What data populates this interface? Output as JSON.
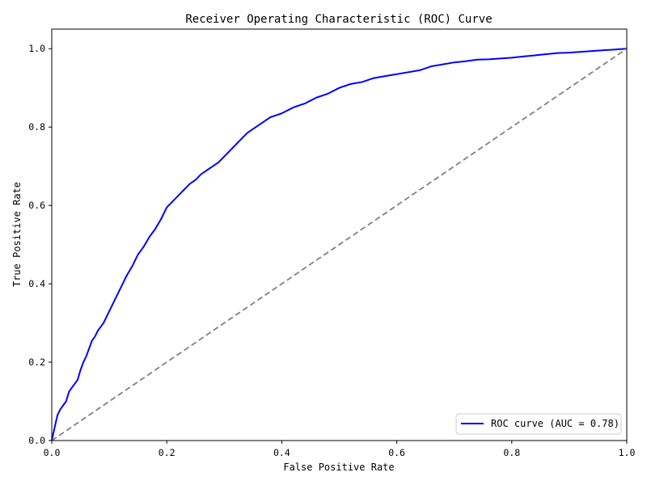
{
  "chart_data": {
    "type": "line",
    "title": "Receiver Operating Characteristic (ROC) Curve",
    "xlabel": "False Positive Rate",
    "ylabel": "True Positive Rate",
    "xlim": [
      0.0,
      1.0
    ],
    "ylim": [
      0.0,
      1.05
    ],
    "xticks": [
      "0.0",
      "0.2",
      "0.4",
      "0.6",
      "0.8",
      "1.0"
    ],
    "yticks": [
      "0.0",
      "0.2",
      "0.4",
      "0.6",
      "0.8",
      "1.0"
    ],
    "grid": false,
    "legend_position": "lower-right",
    "series": [
      {
        "name": "ROC curve (AUC = 0.78)",
        "color": "#0000ff",
        "style": "solid",
        "x": [
          0.0,
          0.003,
          0.006,
          0.01,
          0.015,
          0.02,
          0.025,
          0.03,
          0.035,
          0.04,
          0.045,
          0.05,
          0.055,
          0.06,
          0.065,
          0.07,
          0.075,
          0.08,
          0.085,
          0.09,
          0.1,
          0.11,
          0.12,
          0.13,
          0.14,
          0.15,
          0.16,
          0.17,
          0.18,
          0.19,
          0.2,
          0.21,
          0.22,
          0.23,
          0.24,
          0.25,
          0.26,
          0.27,
          0.28,
          0.29,
          0.3,
          0.31,
          0.32,
          0.33,
          0.34,
          0.35,
          0.36,
          0.37,
          0.38,
          0.39,
          0.4,
          0.42,
          0.44,
          0.46,
          0.48,
          0.5,
          0.52,
          0.54,
          0.56,
          0.58,
          0.6,
          0.62,
          0.64,
          0.66,
          0.68,
          0.7,
          0.72,
          0.74,
          0.76,
          0.78,
          0.8,
          0.82,
          0.84,
          0.86,
          0.88,
          0.9,
          0.92,
          0.94,
          0.96,
          0.98,
          1.0
        ],
        "y": [
          0.0,
          0.02,
          0.04,
          0.065,
          0.08,
          0.09,
          0.1,
          0.125,
          0.135,
          0.145,
          0.155,
          0.18,
          0.2,
          0.215,
          0.235,
          0.255,
          0.265,
          0.28,
          0.29,
          0.3,
          0.33,
          0.36,
          0.39,
          0.42,
          0.445,
          0.475,
          0.495,
          0.52,
          0.54,
          0.565,
          0.595,
          0.61,
          0.625,
          0.64,
          0.655,
          0.665,
          0.68,
          0.69,
          0.7,
          0.71,
          0.725,
          0.74,
          0.755,
          0.77,
          0.785,
          0.795,
          0.805,
          0.815,
          0.825,
          0.83,
          0.835,
          0.85,
          0.86,
          0.875,
          0.885,
          0.9,
          0.91,
          0.915,
          0.925,
          0.93,
          0.935,
          0.94,
          0.945,
          0.955,
          0.96,
          0.965,
          0.968,
          0.972,
          0.973,
          0.975,
          0.977,
          0.98,
          0.983,
          0.986,
          0.989,
          0.99,
          0.992,
          0.994,
          0.996,
          0.998,
          1.0
        ]
      },
      {
        "color": "#808080",
        "style": "dashed",
        "x": [
          0.0,
          1.0
        ],
        "y": [
          0.0,
          1.0
        ]
      }
    ]
  }
}
